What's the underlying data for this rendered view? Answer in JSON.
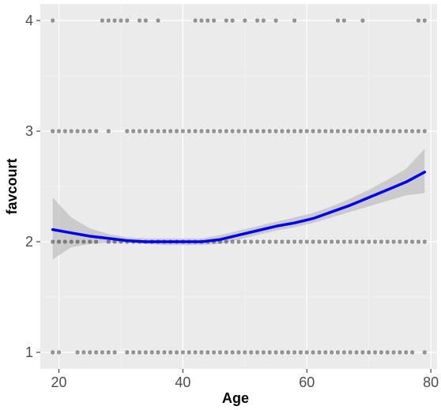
{
  "chart_data": {
    "type": "scatter",
    "title": "",
    "xlabel": "Age",
    "ylabel": "favcourt",
    "xlim": [
      17.0,
      81.0
    ],
    "ylim": [
      0.85,
      4.15
    ],
    "x_ticks": [
      20,
      40,
      60,
      80
    ],
    "y_ticks": [
      1,
      2,
      3,
      4
    ],
    "grid": true,
    "legend": "none",
    "colors": {
      "panel": "#EBEBEB",
      "grid_major": "#FFFFFF",
      "points": "#000000",
      "smooth_line": "#0000FF",
      "ribbon": "#BDBDBD",
      "axis_tick_text": "#4D4D4D",
      "axis_title_text": "#000000"
    },
    "scatter": {
      "point_alpha": 0.4,
      "points_by_y": [
        {
          "y": 4,
          "x": [
            19,
            27,
            28,
            29,
            30,
            31,
            33,
            34,
            36,
            42,
            43,
            44,
            45,
            47,
            48,
            50,
            52,
            53,
            55,
            58,
            65,
            66,
            69,
            78,
            79
          ]
        },
        {
          "y": 3,
          "x": [
            19,
            20,
            21,
            22,
            23,
            24,
            25,
            26,
            28,
            31,
            32,
            33,
            34,
            35,
            36,
            37,
            38,
            39,
            40,
            41,
            42,
            43,
            44,
            45,
            46,
            47,
            48,
            49,
            50,
            51,
            52,
            53,
            54,
            55,
            56,
            57,
            58,
            59,
            60,
            61,
            62,
            63,
            64,
            65,
            66,
            67,
            68,
            69,
            70,
            71,
            72,
            73,
            74,
            75,
            76,
            77,
            78,
            79
          ]
        },
        {
          "y": 2,
          "x": [
            19,
            20,
            21,
            22,
            23,
            24,
            25,
            26,
            28,
            29,
            30,
            31,
            32,
            33,
            34,
            35,
            36,
            37,
            38,
            39,
            40,
            41,
            42,
            43,
            44,
            45,
            46,
            47,
            48,
            49,
            50,
            51,
            52,
            53,
            54,
            55,
            56,
            57,
            58,
            59,
            60,
            61,
            62,
            63,
            64,
            65,
            66,
            67,
            68,
            69,
            70,
            71,
            72,
            73,
            74,
            75,
            76,
            77,
            78,
            79
          ]
        },
        {
          "y": 1,
          "x": [
            19,
            20,
            23,
            24,
            25,
            26,
            27,
            28,
            29,
            31,
            32,
            33,
            34,
            35,
            36,
            37,
            38,
            39,
            40,
            41,
            42,
            43,
            44,
            45,
            46,
            47,
            48,
            49,
            50,
            51,
            52,
            53,
            54,
            55,
            56,
            57,
            58,
            59,
            60,
            61,
            62,
            63,
            64,
            65,
            66,
            67,
            68,
            69,
            70,
            71,
            72,
            73,
            74,
            75,
            76,
            77,
            79
          ]
        }
      ]
    },
    "smooth": {
      "x": [
        19,
        22,
        25,
        28,
        31,
        34,
        37,
        40,
        43,
        46,
        49,
        52,
        55,
        58,
        61,
        64,
        67,
        70,
        73,
        76,
        79
      ],
      "y": [
        2.11,
        2.08,
        2.05,
        2.03,
        2.01,
        2.0,
        2.0,
        2.0,
        2.0,
        2.02,
        2.06,
        2.1,
        2.14,
        2.17,
        2.21,
        2.27,
        2.33,
        2.4,
        2.47,
        2.54,
        2.63
      ],
      "lower": [
        1.84,
        1.95,
        1.98,
        1.99,
        1.99,
        1.98,
        1.97,
        1.97,
        1.97,
        1.98,
        2.02,
        2.06,
        2.1,
        2.13,
        2.17,
        2.22,
        2.27,
        2.32,
        2.37,
        2.42,
        2.44
      ],
      "upper": [
        2.4,
        2.22,
        2.12,
        2.07,
        2.04,
        2.03,
        2.03,
        2.03,
        2.03,
        2.06,
        2.1,
        2.14,
        2.18,
        2.22,
        2.26,
        2.32,
        2.39,
        2.47,
        2.56,
        2.66,
        2.84
      ]
    }
  }
}
